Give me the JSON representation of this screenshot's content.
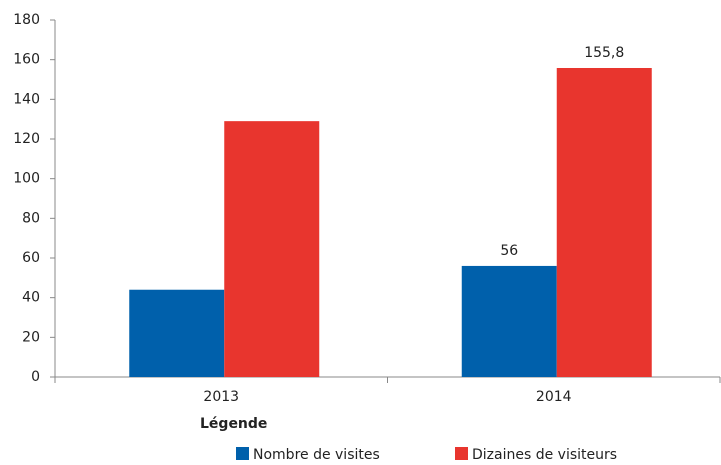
{
  "chart_data": {
    "type": "bar",
    "categories": [
      "2013",
      "2014"
    ],
    "series": [
      {
        "name": "Nombre de visites",
        "color": "#0060ab",
        "values": [
          44,
          56
        ],
        "value_labels": [
          null,
          "56"
        ]
      },
      {
        "name": "Dizaines de visiteurs",
        "color": "#e8352e",
        "values": [
          129,
          155.8
        ],
        "value_labels": [
          null,
          "155,8"
        ]
      }
    ],
    "ylim": [
      0,
      180
    ],
    "yticks": [
      0,
      20,
      40,
      60,
      80,
      100,
      120,
      140,
      160,
      180
    ],
    "grid": false,
    "legend_title": "Légende",
    "legend_position": "bottom"
  }
}
